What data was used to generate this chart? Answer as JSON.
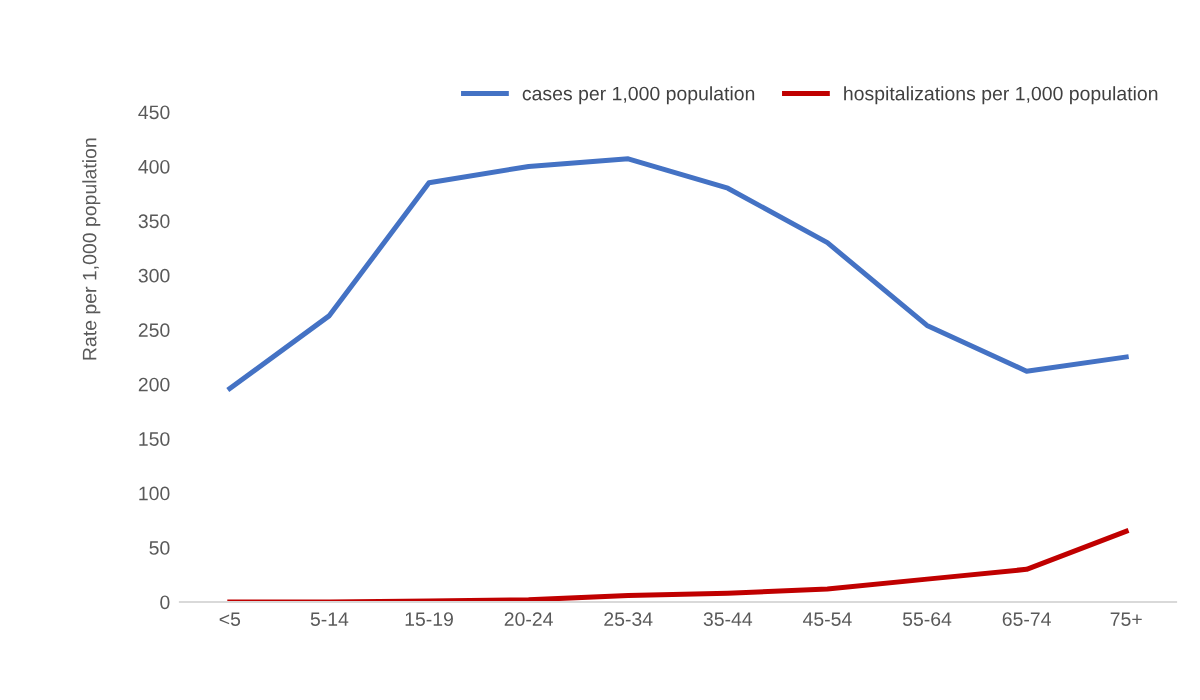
{
  "chart_data": {
    "type": "line",
    "ylabel": "Rate per 1,000 population",
    "categories": [
      "<5",
      "5-14",
      "15-19",
      "20-24",
      "25-34",
      "35-44",
      "45-54",
      "55-64",
      "65-74",
      "75+"
    ],
    "series": [
      {
        "name": "cases per 1,000 population",
        "color": "#4472c4",
        "values": [
          196,
          263,
          385,
          400,
          407,
          380,
          330,
          254,
          212,
          225
        ]
      },
      {
        "name": "hospitalizations per 1,000 population",
        "color": "#c00000",
        "values": [
          0,
          0,
          1,
          2,
          6,
          8,
          12,
          21,
          30,
          65
        ]
      }
    ],
    "ylim": [
      0,
      450
    ],
    "yticks": [
      0,
      50,
      100,
      150,
      200,
      250,
      300,
      350,
      400,
      450
    ],
    "grid": false,
    "legend": "top right",
    "marker": "none",
    "line_style": "solid"
  }
}
